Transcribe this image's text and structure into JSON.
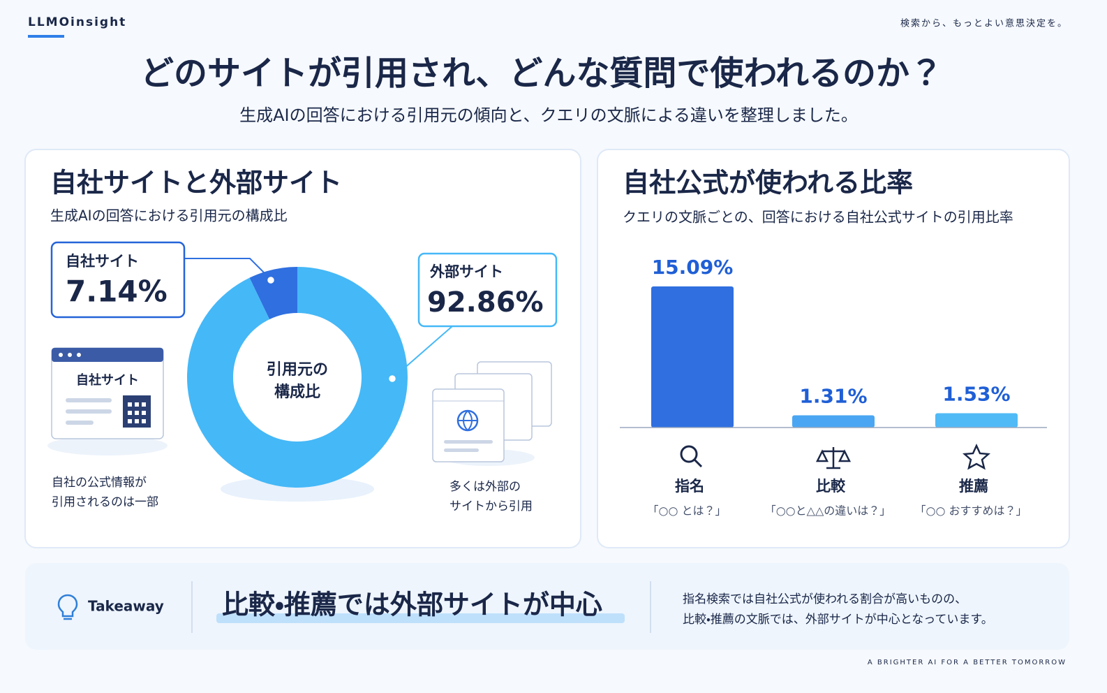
{
  "header": {
    "brand": "LLMOinsight",
    "tagline": "検索から、もっとよい意思決定を。",
    "title": "どのサイトが引用され、どんな質問で使われるのか？",
    "subtitle": "生成AIの回答における引用元の傾向と、クエリの文脈による違いを整理しました。"
  },
  "chart_data": [
    {
      "type": "pie",
      "title": "自社サイトと外部サイト",
      "subtitle": "生成AIの回答における引用元の構成比",
      "center_label": [
        "引用元の",
        "構成比"
      ],
      "categories": [
        "自社サイト",
        "外部サイト"
      ],
      "values": [
        7.14,
        92.86
      ],
      "value_labels": [
        "7.14%",
        "92.86%"
      ],
      "colors": [
        "#2f6fe0",
        "#45b8f7"
      ],
      "annotations": [
        [
          "自社の公式情報が",
          "引用されるのは一部"
        ],
        [
          "多くは外部の",
          "サイトから引用"
        ]
      ]
    },
    {
      "type": "bar",
      "title": "自社公式が使われる比率",
      "subtitle": "クエリの文脈ごとの、回答における自社公式サイトの引用比率",
      "categories": [
        "指名",
        "比較",
        "推薦"
      ],
      "examples": [
        "「○○ とは？」",
        "「○○と△△の違いは？」",
        "「○○ おすすめは？」"
      ],
      "values": [
        15.09,
        1.31,
        1.53
      ],
      "value_labels": [
        "15.09%",
        "1.31%",
        "1.53%"
      ],
      "colors": [
        "#2f6fe0",
        "#4aa6f2",
        "#50baf6"
      ]
    }
  ],
  "takeaway": {
    "label": "Takeaway",
    "headline": "比較・推薦では外部サイトが中心",
    "body": [
      "指名検索では自社公式が使われる割合が高いものの、",
      "比較・推薦の文脈では、外部サイトが中心となっています。"
    ]
  },
  "footer": "A BRIGHTER AI FOR A BETTER TOMORROW"
}
